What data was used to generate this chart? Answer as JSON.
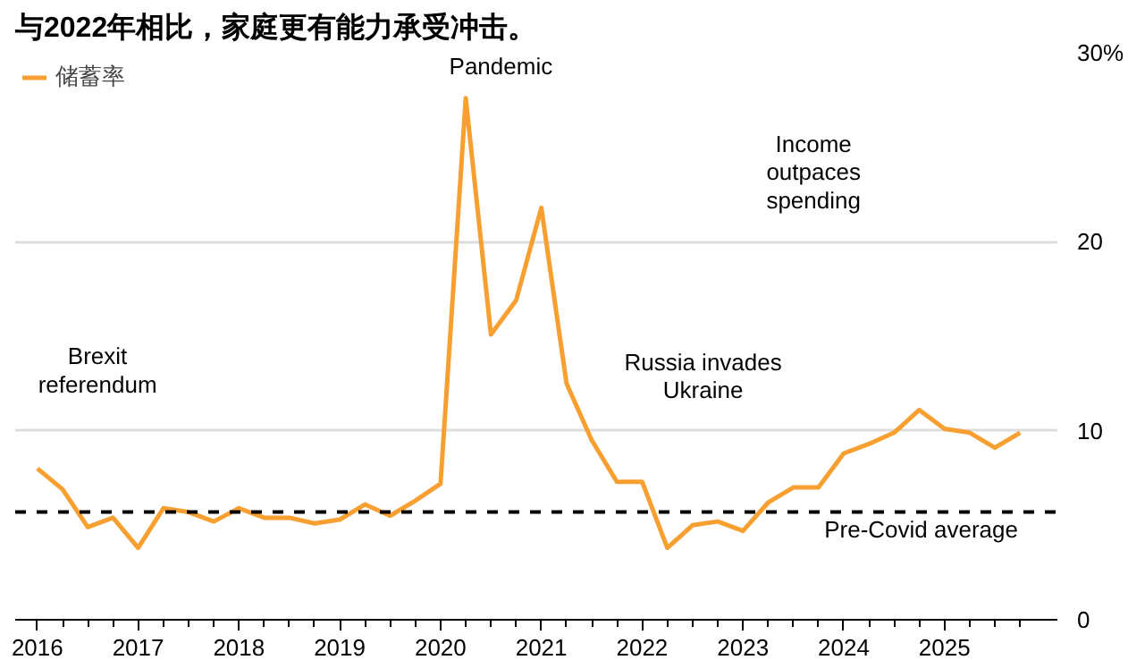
{
  "chart_data": {
    "type": "line",
    "title": "与2022年相比，家庭更有能力承受冲击。",
    "x": [
      2016,
      2016.25,
      2016.5,
      2016.75,
      2017,
      2017.25,
      2017.5,
      2017.75,
      2018,
      2018.25,
      2018.5,
      2018.75,
      2019,
      2019.25,
      2019.5,
      2019.75,
      2020,
      2020.25,
      2020.5,
      2020.75,
      2021,
      2021.25,
      2021.5,
      2021.75,
      2022,
      2022.25,
      2022.5,
      2022.75,
      2023,
      2023.25,
      2023.5,
      2023.75,
      2024,
      2024.25,
      2024.5,
      2024.75,
      2025,
      2025.25,
      2025.5,
      2025.75
    ],
    "series": [
      {
        "name": "储蓄率",
        "color": "#f7a031",
        "values": [
          8.0,
          6.9,
          4.9,
          5.4,
          3.8,
          5.9,
          5.7,
          5.2,
          5.9,
          5.4,
          5.4,
          5.1,
          5.3,
          6.1,
          5.5,
          6.3,
          7.2,
          27.6,
          15.1,
          16.9,
          21.8,
          12.5,
          9.5,
          7.3,
          7.3,
          3.8,
          5.0,
          5.2,
          4.7,
          6.2,
          7.0,
          7.0,
          8.8,
          9.3,
          9.9,
          11.1,
          10.1,
          9.9,
          9.1,
          9.9
        ]
      }
    ],
    "xlim": [
      2015.78,
      2026.12
    ],
    "ylim": [
      0,
      30
    ],
    "xticks": [
      2016,
      {
        "value": 2016.25,
        "label": null
      },
      {
        "value": 2016.5,
        "label": null
      },
      {
        "value": 2016.75,
        "label": null
      },
      2017,
      {
        "value": 2017.25,
        "label": null
      },
      {
        "value": 2017.5,
        "label": null
      },
      {
        "value": 2017.75,
        "label": null
      },
      2018,
      {
        "value": 2018.25,
        "label": null
      },
      {
        "value": 2018.5,
        "label": null
      },
      {
        "value": 2018.75,
        "label": null
      },
      2019,
      {
        "value": 2019.25,
        "label": null
      },
      {
        "value": 2019.5,
        "label": null
      },
      {
        "value": 2019.75,
        "label": null
      },
      2020,
      {
        "value": 2020.25,
        "label": null
      },
      {
        "value": 2020.5,
        "label": null
      },
      {
        "value": 2020.75,
        "label": null
      },
      2021,
      {
        "value": 2021.25,
        "label": null
      },
      {
        "value": 2021.5,
        "label": null
      },
      {
        "value": 2021.75,
        "label": null
      },
      2022,
      {
        "value": 2022.25,
        "label": null
      },
      {
        "value": 2022.5,
        "label": null
      },
      {
        "value": 2022.75,
        "label": null
      },
      2023,
      {
        "value": 2023.25,
        "label": null
      },
      {
        "value": 2023.5,
        "label": null
      },
      {
        "value": 2023.75,
        "label": null
      },
      2024,
      {
        "value": 2024.25,
        "label": null
      },
      {
        "value": 2024.5,
        "label": null
      },
      {
        "value": 2024.75,
        "label": null
      },
      2025,
      {
        "value": 2025.25,
        "label": null
      },
      {
        "value": 2025.5,
        "label": null
      },
      {
        "value": 2025.75,
        "label": null
      }
    ],
    "yticks": [
      0,
      10,
      20,
      {
        "value": 30,
        "label": "30%"
      }
    ],
    "grid": "y",
    "legend": "top left",
    "marker": "none",
    "line_style": "solid",
    "ref_lines": [
      {
        "axis": "y",
        "value": 5.7,
        "label": "Pre-Covid average",
        "color": "#000000",
        "line_style": "dashed"
      }
    ],
    "annotations": [
      "Brexit\nreferendum",
      "Pandemic",
      "Russia invades\nUkraine",
      "Income\noutpaces\nspending"
    ]
  }
}
